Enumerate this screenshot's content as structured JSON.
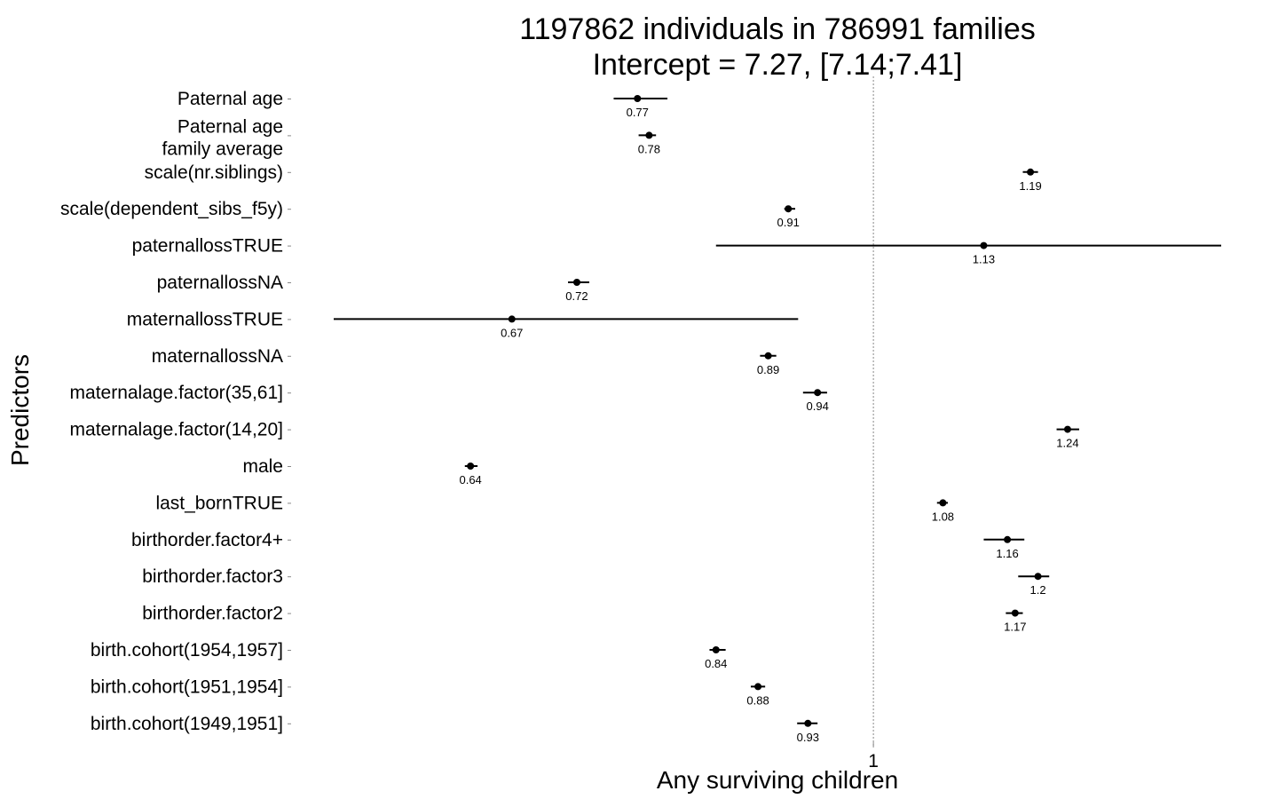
{
  "chart_data": {
    "type": "forest",
    "title": [
      "1197862 individuals in 786991 families",
      "Intercept = 7.27, [7.14;7.41]"
    ],
    "xlabel": "Any surviving children",
    "ylabel": "Predictors",
    "x_scale": "log",
    "reference_line": 1,
    "x_ticks": [
      1
    ],
    "x_tick_labels": [
      "1"
    ],
    "grid": false,
    "rows": [
      {
        "label": [
          "Paternal age"
        ],
        "estimate": 0.77,
        "estimate_label": "0.77",
        "ci": [
          0.75,
          0.796
        ]
      },
      {
        "label": [
          "Paternal age",
          "family average"
        ],
        "estimate": 0.78,
        "estimate_label": "0.78",
        "ci": [
          0.771,
          0.786
        ]
      },
      {
        "label": [
          "scale(nr.siblings)"
        ],
        "estimate": 1.19,
        "estimate_label": "1.19",
        "ci": [
          1.18,
          1.2
        ]
      },
      {
        "label": [
          "scale(dependent_sibs_f5y)"
        ],
        "estimate": 0.91,
        "estimate_label": "0.91",
        "ci": [
          0.906,
          0.917
        ]
      },
      {
        "label": [
          "paternallossTRUE"
        ],
        "estimate": 1.13,
        "estimate_label": "1.13",
        "ci": [
          0.84,
          1.47
        ]
      },
      {
        "label": [
          "paternallossNA"
        ],
        "estimate": 0.72,
        "estimate_label": "0.72",
        "ci": [
          0.713,
          0.73
        ]
      },
      {
        "label": [
          "maternallossTRUE"
        ],
        "estimate": 0.67,
        "estimate_label": "0.67",
        "ci": [
          0.55,
          0.92
        ]
      },
      {
        "label": [
          "maternallossNA"
        ],
        "estimate": 0.89,
        "estimate_label": "0.89",
        "ci": [
          0.882,
          0.898
        ]
      },
      {
        "label": [
          "maternalage.factor(35,61]"
        ],
        "estimate": 0.94,
        "estimate_label": "0.94",
        "ci": [
          0.925,
          0.95
        ]
      },
      {
        "label": [
          "maternalage.factor(14,20]"
        ],
        "estimate": 1.24,
        "estimate_label": "1.24",
        "ci": [
          1.225,
          1.256
        ]
      },
      {
        "label": [
          "male"
        ],
        "estimate": 0.64,
        "estimate_label": "0.64",
        "ci": [
          0.636,
          0.645
        ]
      },
      {
        "label": [
          "last_bornTRUE"
        ],
        "estimate": 1.08,
        "estimate_label": "1.08",
        "ci": [
          1.073,
          1.086
        ]
      },
      {
        "label": [
          "birthorder.factor4+"
        ],
        "estimate": 1.16,
        "estimate_label": "1.16",
        "ci": [
          1.13,
          1.182
        ]
      },
      {
        "label": [
          "birthorder.factor3"
        ],
        "estimate": 1.2,
        "estimate_label": "1.2",
        "ci": [
          1.174,
          1.215
        ]
      },
      {
        "label": [
          "birthorder.factor2"
        ],
        "estimate": 1.17,
        "estimate_label": "1.17",
        "ci": [
          1.158,
          1.18
        ]
      },
      {
        "label": [
          "birth.cohort(1954,1957]"
        ],
        "estimate": 0.84,
        "estimate_label": "0.84",
        "ci": [
          0.834,
          0.849
        ]
      },
      {
        "label": [
          "birth.cohort(1951,1954]"
        ],
        "estimate": 0.88,
        "estimate_label": "0.88",
        "ci": [
          0.873,
          0.887
        ]
      },
      {
        "label": [
          "birth.cohort(1949,1951]"
        ],
        "estimate": 0.93,
        "estimate_label": "0.93",
        "ci": [
          0.919,
          0.94
        ]
      }
    ]
  }
}
